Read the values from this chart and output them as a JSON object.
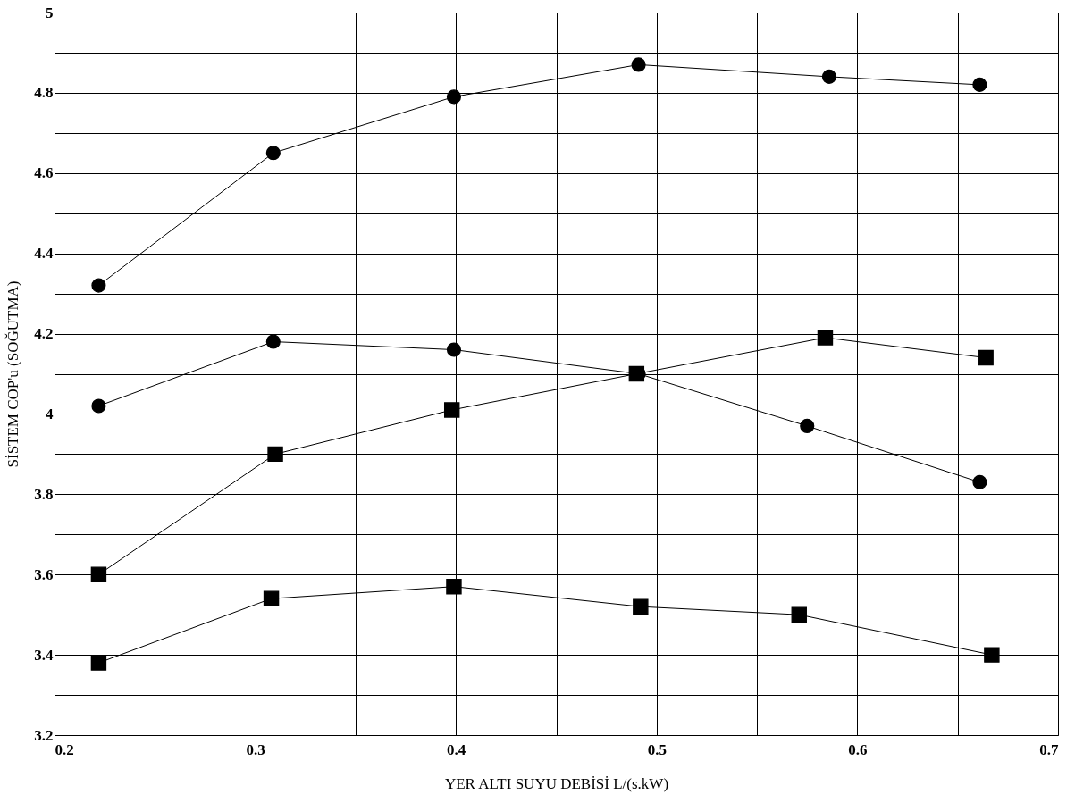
{
  "chart_data": {
    "type": "line",
    "xlabel": "YER ALTI SUYU DEBİSİ L/(s.kW)",
    "ylabel": "SİSTEM COP'u (SOĞUTMA)",
    "xlim": [
      0.2,
      0.7
    ],
    "ylim": [
      3.2,
      5
    ],
    "xticks": [
      0.2,
      {
        "value": 0.25,
        "label": null
      },
      0.3,
      {
        "value": 0.35,
        "label": null
      },
      0.4,
      {
        "value": 0.45,
        "label": null
      },
      0.5,
      {
        "value": 0.55,
        "label": null
      },
      0.6,
      {
        "value": 0.65,
        "label": null
      },
      0.7
    ],
    "yticks": [
      3.2,
      {
        "value": 3.3,
        "label": null
      },
      3.4,
      {
        "value": 3.5,
        "label": null
      },
      3.6,
      {
        "value": 3.7,
        "label": null
      },
      3.8,
      {
        "value": 3.9,
        "label": null
      },
      4,
      {
        "value": 4.1,
        "label": null
      },
      4.2,
      {
        "value": 4.3,
        "label": null
      },
      4.4,
      {
        "value": 4.5,
        "label": null
      },
      4.6,
      {
        "value": 4.7,
        "label": null
      },
      4.8,
      {
        "value": 4.9,
        "label": null
      },
      5
    ],
    "grid": true,
    "line_style": "solid",
    "series": [
      {
        "color": "#000000",
        "marker": "circle",
        "x": [
          0.222,
          0.309,
          0.399,
          0.491,
          0.586,
          0.661
        ],
        "values": [
          4.32,
          4.65,
          4.79,
          4.87,
          4.84,
          4.82
        ]
      },
      {
        "color": "#000000",
        "marker": "circle",
        "x": [
          0.222,
          0.309,
          0.399,
          0.491,
          0.575,
          0.661
        ],
        "values": [
          4.02,
          4.18,
          4.16,
          4.1,
          3.97,
          3.83
        ]
      },
      {
        "color": "#000000",
        "marker": "square",
        "x": [
          0.222,
          0.31,
          0.398,
          0.49,
          0.584,
          0.664
        ],
        "values": [
          3.6,
          3.9,
          4.01,
          4.1,
          4.19,
          4.14
        ]
      },
      {
        "color": "#000000",
        "marker": "square",
        "x": [
          0.222,
          0.308,
          0.399,
          0.492,
          0.571,
          0.667
        ],
        "values": [
          3.38,
          3.54,
          3.57,
          3.52,
          3.5,
          3.4
        ]
      }
    ]
  }
}
